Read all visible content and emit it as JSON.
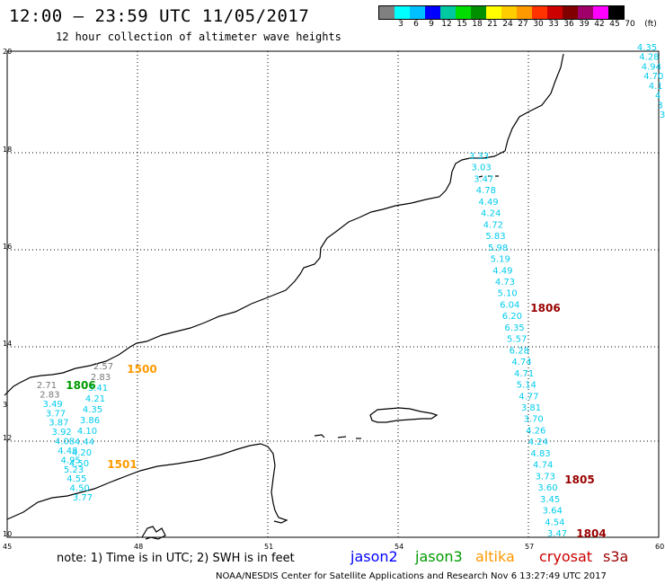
{
  "title": "12:00 – 23:59 UTC 11/05/2017",
  "subtitle": "12 hour collection of altimeter wave heights",
  "legend": {
    "labels": [
      "3",
      "6",
      "9",
      "12",
      "15",
      "18",
      "21",
      "24",
      "27",
      "30",
      "33",
      "36",
      "39",
      "42",
      "45",
      "70"
    ],
    "unit": "(ft)",
    "colors": [
      "#808080",
      "#00ffff",
      "#00c0ff",
      "#0000ff",
      "#00c8a0",
      "#00dd00",
      "#009000",
      "#ffff00",
      "#ffcc00",
      "#ff9900",
      "#ff3300",
      "#cc0000",
      "#800000",
      "#a0006a",
      "#ff00ff",
      "#000000"
    ]
  },
  "axes": {
    "x_ticks": [
      "45",
      "48",
      "51",
      "54",
      "57",
      "60"
    ],
    "y_ticks": [
      "20",
      "18",
      "16",
      "14",
      "12",
      "10"
    ]
  },
  "track_colors": {
    "jason2": "#0000ff",
    "jason3": "#009900",
    "altika": "#ff9900",
    "cryosat": "#990000",
    "s3a": "#800000",
    "default": "#00ccee",
    "gray": "#777777"
  },
  "tracks": [
    {
      "id": "east",
      "values": [
        "3.33",
        "3.03",
        "3.47",
        "4.78",
        "4.49",
        "4.24",
        "4.72",
        "5.83",
        "5.98",
        "5.19",
        "4.49",
        "4.73",
        "5.10",
        "6.04",
        "6.20",
        "6.35",
        "5.57",
        "6.28",
        "4.74",
        "4.71",
        "5.14",
        "4.77",
        "3.81",
        "3.70",
        "4.26",
        "4.24",
        "4.83",
        "4.74",
        "3.73",
        "3.60",
        "3.45",
        "3.64",
        "4.54",
        "3.47"
      ]
    },
    {
      "id": "westA",
      "values": [
        "2.71",
        "2.83",
        "3.49",
        "3.77",
        "3.87",
        "3.92",
        "4.08",
        "4.48",
        "4.95",
        "5.23",
        "4.55",
        "4.50",
        "3.77"
      ]
    },
    {
      "id": "westB",
      "values": [
        "2.83",
        "3.41",
        "4.21",
        "4.35",
        "3.86",
        "4.10",
        "4.44",
        "4.20",
        "4.50"
      ]
    },
    {
      "id": "corner",
      "values": [
        "4.35",
        "4.28",
        "4.94",
        "4.70",
        "4.1",
        "4",
        "3",
        "3"
      ]
    },
    {
      "id": "gray",
      "values": [
        "2.57"
      ]
    }
  ],
  "time_labels": [
    {
      "text": "1500",
      "color": "#ff9900"
    },
    {
      "text": "1806",
      "color": "#009900"
    },
    {
      "text": "1501",
      "color": "#ff9900"
    },
    {
      "text": "1806",
      "color": "#990000"
    },
    {
      "text": "1805",
      "color": "#990000"
    },
    {
      "text": "1804",
      "color": "#990000"
    }
  ],
  "footer": {
    "note": "note: 1) Time is in UTC; 2) SWH is in feet",
    "satellites": [
      {
        "name": "jason2",
        "color": "#0000ff"
      },
      {
        "name": "jason3",
        "color": "#009900"
      },
      {
        "name": "altika",
        "color": "#ff9900"
      },
      {
        "name": "cryosat",
        "color": "#cc0000"
      },
      {
        "name": "s3a",
        "color": "#990000"
      }
    ],
    "credit": "NOAA/NESDIS Center for Satellite Applications and Research    Nov  6 13:27:49 UTC 2017"
  }
}
